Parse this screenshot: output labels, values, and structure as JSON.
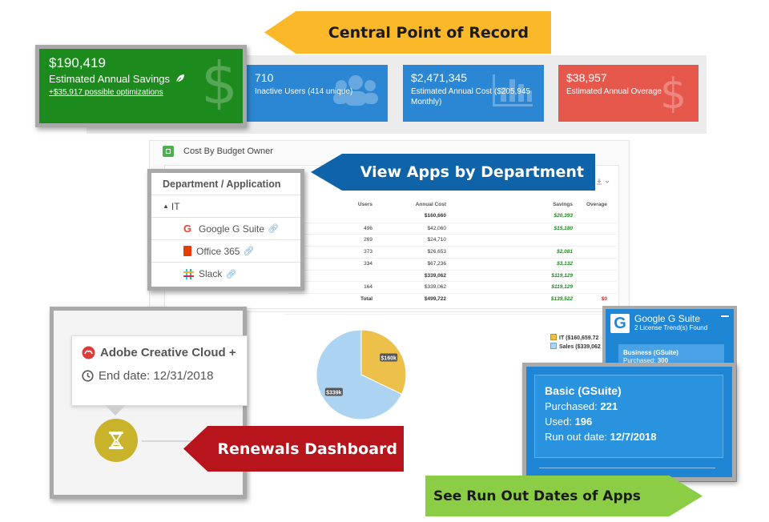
{
  "callouts": {
    "central": "Central Point of Record",
    "view_apps": "View Apps by Department",
    "renewals": "Renewals Dashboard",
    "run_out": "See Run Out Dates of Apps"
  },
  "metrics": {
    "savings": {
      "value": "$190,419",
      "label": "Estimated Annual Savings",
      "optimizations": "+$35,917 possible optimizations"
    },
    "inactive": {
      "value": "710",
      "label": "Inactive Users (414 unique)"
    },
    "cost": {
      "value": "$2,471,345",
      "label": "Estimated Annual Cost  ($205,945 Monthly)"
    },
    "overage": {
      "value": "$38,957",
      "label": "Estimated Annual Overage"
    }
  },
  "budget": {
    "title": "Cost By Budget Owner",
    "columns": [
      "Users",
      "Annual Cost",
      "Savings",
      "Overage"
    ],
    "rows": [
      {
        "users": "",
        "cost": "$160,660",
        "savings": "$20,393",
        "overage": "",
        "bold": true
      },
      {
        "users": "496",
        "cost": "$42,060",
        "savings": "$15,180",
        "overage": ""
      },
      {
        "users": "269",
        "cost": "$24,710",
        "savings": "",
        "overage": ""
      },
      {
        "users": "373",
        "cost": "$26,653",
        "savings": "$2,081",
        "overage": ""
      },
      {
        "users": "334",
        "cost": "$67,236",
        "savings": "$3,132",
        "overage": ""
      },
      {
        "users": "",
        "cost": "$339,062",
        "savings": "$119,129",
        "overage": "",
        "bold": true
      },
      {
        "users": "164",
        "cost": "$339,062",
        "savings": "$119,129",
        "overage": ""
      },
      {
        "users": "Total",
        "cost": "$499,722",
        "savings": "$139,522",
        "overage": "$0",
        "bold": true
      }
    ]
  },
  "department": {
    "header": "Department / Application",
    "group": "IT",
    "apps": [
      "Google G Suite",
      "Office 365",
      "Slack"
    ]
  },
  "pie": {
    "slices": [
      {
        "label": "$160k",
        "value": 160659.72,
        "color": "#ecc04b"
      },
      {
        "label": "$339k",
        "value": 339062,
        "color": "#acd3f2"
      }
    ],
    "legend": [
      "IT ($160,659.72",
      "Sales ($339,062"
    ]
  },
  "renewal": {
    "app": "Adobe Creative Cloud +",
    "end_date": "End date: 12/31/2018"
  },
  "gsuite": {
    "title": "Google G Suite",
    "subtitle": "2 License Trend(s) Found",
    "business": {
      "name": "Business (GSuite)",
      "purchased_label": "Purchased: ",
      "purchased": "300"
    },
    "basic": {
      "name": "Basic (GSuite)",
      "purchased_label": "Purchased: ",
      "purchased": "221",
      "used_label": "Used: ",
      "used": "196",
      "runout_label": "Run out date: ",
      "runout": "12/7/2018"
    }
  },
  "colors": {
    "green": "#1c8a1c",
    "blue": "#2b87d3",
    "red": "#e6584c",
    "yellow_callout": "#fbb829",
    "blue_callout": "#0f63a8",
    "red_callout": "#b8141c",
    "green_callout": "#8ccd46"
  }
}
